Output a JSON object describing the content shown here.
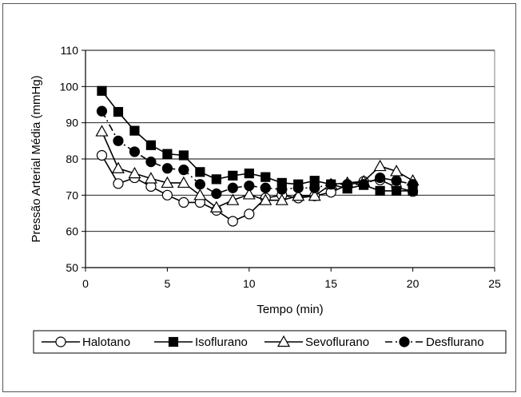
{
  "chart_data": {
    "type": "line",
    "xlabel": "Tempo (min)",
    "ylabel": "Pressão Arterial Média (mmHg)",
    "xlim": [
      0,
      25
    ],
    "ylim": [
      50,
      110
    ],
    "x_ticks": [
      "0",
      "5",
      "10",
      "15",
      "20",
      "25"
    ],
    "y_ticks": [
      "50",
      "60",
      "70",
      "80",
      "90",
      "100",
      "110"
    ],
    "grid": "horizontal",
    "legend_position": "bottom",
    "series": [
      {
        "name": "Halotano",
        "marker": "circle-open",
        "line": "solid",
        "x": [
          1,
          2,
          3,
          4,
          5,
          6,
          7,
          8,
          9,
          10,
          11,
          12,
          13,
          14,
          15,
          16,
          17,
          18,
          19,
          20
        ],
        "values": [
          81,
          73.2,
          74.8,
          72.4,
          70,
          68,
          68,
          65.8,
          62.8,
          64.8,
          69.2,
          70,
          69.2,
          69.8,
          70.8,
          72.8,
          73.8,
          74.2,
          72.2,
          71
        ]
      },
      {
        "name": "Isoflurano",
        "marker": "square-filled",
        "line": "solid",
        "x": [
          1,
          2,
          3,
          4,
          5,
          6,
          7,
          8,
          9,
          10,
          11,
          12,
          13,
          14,
          15,
          16,
          17,
          18,
          19,
          20
        ],
        "values": [
          98.8,
          93,
          87.8,
          83.8,
          81.4,
          81,
          76.4,
          74.4,
          75.4,
          76,
          75,
          73.4,
          73,
          74,
          73,
          71.8,
          72.8,
          71.2,
          71.2,
          71.2
        ]
      },
      {
        "name": "Sevoflurano",
        "marker": "triangle-open",
        "line": "solid",
        "x": [
          1,
          2,
          3,
          4,
          5,
          6,
          7,
          8,
          9,
          10,
          11,
          12,
          13,
          14,
          15,
          16,
          17,
          18,
          19,
          20
        ],
        "values": [
          87.6,
          77.4,
          76,
          74.6,
          73.4,
          73.4,
          70,
          66.6,
          68.6,
          70.2,
          68.6,
          68.6,
          69.8,
          69.8,
          73,
          73.4,
          73.8,
          78,
          76.6,
          74
        ]
      },
      {
        "name": "Desflurano",
        "marker": "circle-filled",
        "line": "dash-dot",
        "x": [
          1,
          2,
          3,
          4,
          5,
          6,
          7,
          8,
          9,
          10,
          11,
          12,
          13,
          14,
          15,
          16,
          17,
          18,
          19,
          20
        ],
        "values": [
          93.2,
          85,
          82,
          79.2,
          77.4,
          77,
          73,
          70.4,
          72,
          72.6,
          72,
          71.6,
          72,
          72,
          73,
          73,
          73,
          74.8,
          74,
          73
        ]
      }
    ]
  }
}
